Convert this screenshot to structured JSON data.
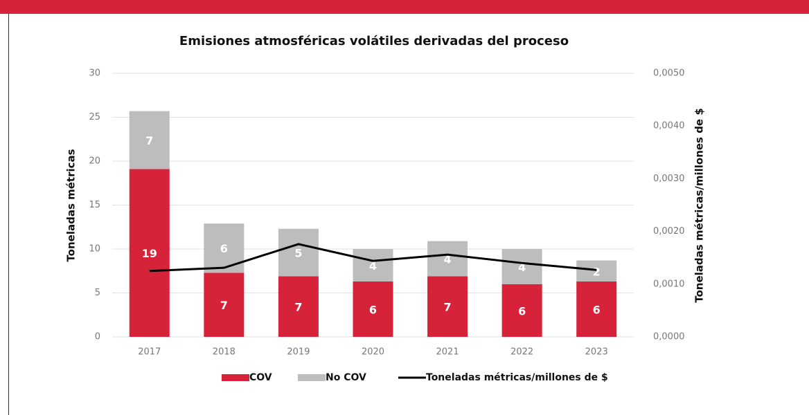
{
  "chart_data": {
    "type": "bar",
    "title": "Emisiones atmosféricas volátiles derivadas del proceso",
    "y_label": "Toneladas métricas",
    "y2_label": "Toneladas métricas/millones de $",
    "categories": [
      "2017",
      "2018",
      "2019",
      "2020",
      "2021",
      "2022",
      "2023"
    ],
    "stacked": true,
    "series": [
      {
        "name": "COV",
        "type": "bar",
        "color": "#d7233a",
        "values": [
          19.1,
          7.3,
          6.9,
          6.3,
          6.9,
          6.0,
          6.3
        ],
        "value_labels": [
          "19",
          "7",
          "7",
          "6",
          "7",
          "6",
          "6"
        ]
      },
      {
        "name": "No COV",
        "type": "bar",
        "color": "#bdbdbd",
        "values": [
          6.6,
          5.6,
          5.4,
          3.7,
          4.0,
          4.0,
          2.4
        ],
        "value_labels": [
          "7",
          "6",
          "5",
          "4",
          "4",
          "4",
          "2"
        ]
      },
      {
        "name": "Toneladas métricas/millones de $",
        "type": "line",
        "axis": "y2",
        "color": "#000000",
        "values": [
          0.00125,
          0.00131,
          0.00176,
          0.00144,
          0.00156,
          0.0014,
          0.00127
        ]
      }
    ],
    "ylim": [
      0,
      30
    ],
    "yticks": [
      0,
      5,
      10,
      15,
      20,
      25,
      30
    ],
    "y2lim": [
      0,
      0.005
    ],
    "y2ticks": [
      {
        "value": 0,
        "label": "0,0000"
      },
      {
        "value": 0.001,
        "label": "0,0010"
      },
      {
        "value": 0.002,
        "label": "0,0020"
      },
      {
        "value": 0.003,
        "label": "0,0030"
      },
      {
        "value": 0.004,
        "label": "0,0040"
      },
      {
        "value": 0.005,
        "label": "0,0050"
      }
    ],
    "grid": true,
    "legend": "bottom"
  }
}
